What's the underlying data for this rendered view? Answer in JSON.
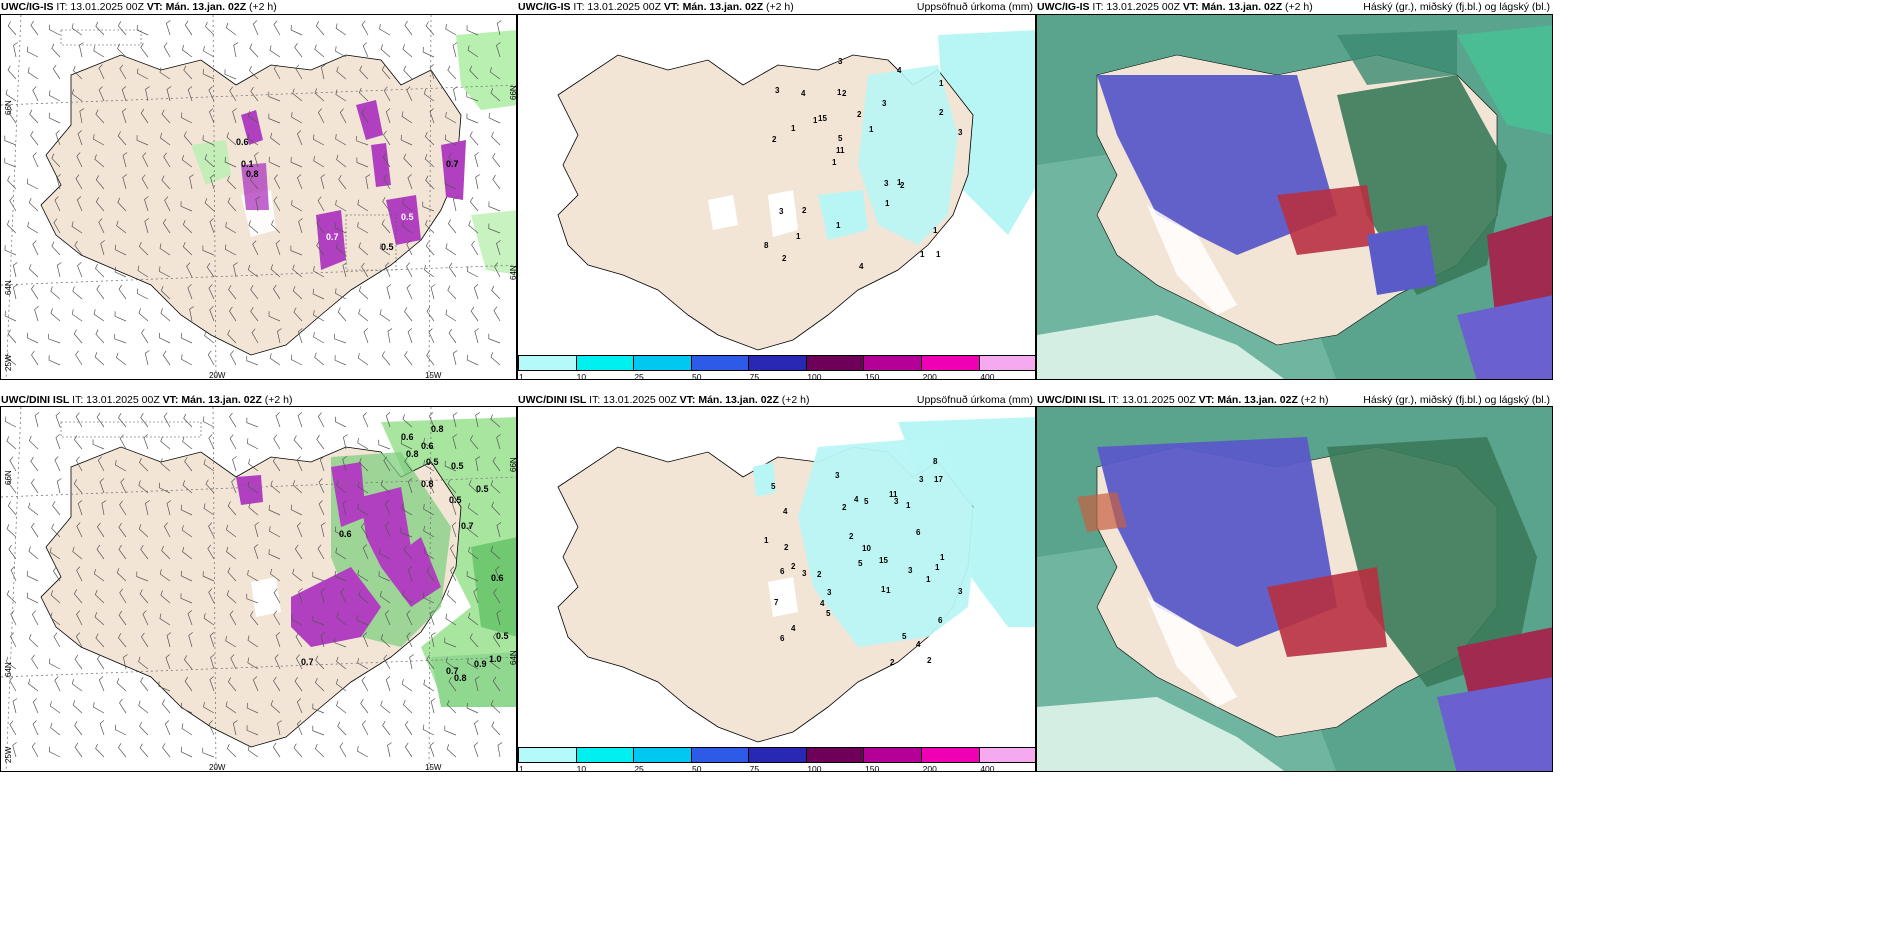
{
  "panels": [
    {
      "id": "p1",
      "model": "UWC/IG-IS",
      "it_label": "IT:",
      "it": "13.01.2025 00Z",
      "vt_label": "VT:",
      "vt": "Mán. 13.jan. 02Z",
      "lead": "(+2 h)",
      "right_title": "",
      "type": "wind-precip"
    },
    {
      "id": "p2",
      "model": "UWC/IG-IS",
      "it_label": "IT:",
      "it": "13.01.2025 00Z",
      "vt_label": "VT:",
      "vt": "Mán. 13.jan. 02Z",
      "lead": "(+2 h)",
      "right_title": "Uppsöfnuð úrkoma (mm)",
      "type": "accum"
    },
    {
      "id": "p3",
      "model": "UWC/IG-IS",
      "it_label": "IT:",
      "it": "13.01.2025 00Z",
      "vt_label": "VT:",
      "vt": "Mán. 13.jan. 02Z",
      "lead": "(+2 h)",
      "right_title": "Háský (gr.), miðský (fj.bl.) og lágský (bl.)",
      "type": "cloud"
    },
    {
      "id": "p4",
      "model": "UWC/DINI ISL",
      "it_label": "IT:",
      "it": "13.01.2025 00Z",
      "vt_label": "VT:",
      "vt": "Mán. 13.jan. 02Z",
      "lead": "(+2 h)",
      "right_title": "",
      "type": "wind-precip"
    },
    {
      "id": "p5",
      "model": "UWC/DINI ISL",
      "it_label": "IT:",
      "it": "13.01.2025 00Z",
      "vt_label": "VT:",
      "vt": "Mán. 13.jan. 02Z",
      "lead": "(+2 h)",
      "right_title": "Uppsöfnuð úrkoma (mm)",
      "type": "accum"
    },
    {
      "id": "p6",
      "model": "UWC/DINI ISL",
      "it_label": "IT:",
      "it": "13.01.2025 00Z",
      "vt_label": "VT:",
      "vt": "Mán. 13.jan. 02Z",
      "lead": "(+2 h)",
      "right_title": "Háský (gr.), miðský (fj.bl.) og lágský (bl.)",
      "type": "cloud"
    }
  ],
  "grid_labels": {
    "lat66": "66N",
    "lat64": "64N",
    "lon25": "25W",
    "lon20": "20W",
    "lon15": "15W"
  },
  "accum_legend": {
    "ticks": [
      "1",
      "10",
      "25",
      "50",
      "75",
      "100",
      "150",
      "200",
      "400"
    ],
    "colors": [
      "#b4fafa",
      "#00f0f0",
      "#00c8f0",
      "#2d5ae6",
      "#2828b4",
      "#6e005a",
      "#b40096",
      "#f000b4",
      "#f5aaf0"
    ]
  },
  "colors": {
    "land": "#f3e5d6",
    "coast": "#000000",
    "light_precip": "#b8f0b0",
    "snow": "#b040c0",
    "cyan_precip": "#b8f6f6",
    "cloud_sea": "#5aa38c",
    "cloud_mid": "#5a5ac8",
    "cloud_high": "#b83040",
    "cloud_low": "#3a7a5a"
  },
  "accum_points_top": [
    "1",
    "2",
    "1",
    "1",
    "3",
    "2",
    "1",
    "2",
    "3",
    "15",
    "8",
    "1",
    "2",
    "1",
    "2",
    "3",
    "3",
    "3",
    "3",
    "2",
    "11",
    "1",
    "5",
    "4",
    "4",
    "2",
    "1",
    "1",
    "1",
    "4",
    "1",
    "1",
    "1"
  ],
  "accum_points_bottom": [
    "2",
    "2",
    "1",
    "5",
    "6",
    "4",
    "4",
    "2",
    "1",
    "4",
    "3",
    "4",
    "5",
    "3",
    "15",
    "7",
    "3",
    "10",
    "1",
    "6",
    "8",
    "5",
    "6",
    "3",
    "1",
    "2",
    "3",
    "5",
    "2",
    "17",
    "1",
    "6",
    "4",
    "11",
    "2",
    "1",
    "1",
    "5",
    "3",
    "2",
    "3"
  ],
  "wind_labels_top": [
    "0.6",
    "0.1",
    "0.8",
    "0.7",
    "0.5",
    "0.7",
    "0.5"
  ],
  "wind_labels_bottom": [
    "0.8",
    "0.6",
    "0.6",
    "0.8",
    "0.5",
    "0.5",
    "0.7",
    "0.5",
    "0.6",
    "0.5",
    "0.7",
    "0.7",
    "0.9",
    "1.0",
    "0.8",
    "0.8",
    "0.5",
    "0.6"
  ]
}
